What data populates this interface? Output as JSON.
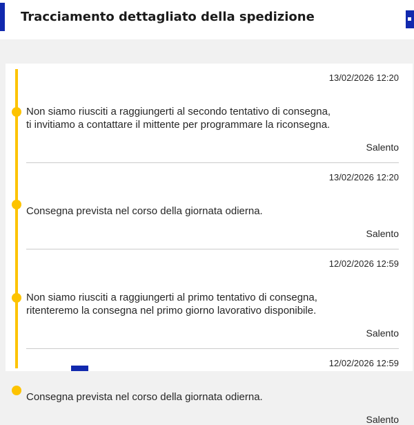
{
  "header": {
    "title": "Tracciamento dettagliato della spedizione"
  },
  "timeline": {
    "events": [
      {
        "datetime": "13/02/2026 12:20",
        "message": "Non siamo riusciti a raggiungerti al secondo tentativo di consegna,\nti invitiamo a contattare il mittente per programmare la riconsegna.",
        "location": "Salento"
      },
      {
        "datetime": "13/02/2026 12:20",
        "message": "Consegna prevista nel corso della giornata odierna.",
        "location": "Salento"
      },
      {
        "datetime": "12/02/2026 12:59",
        "message": "Non siamo riusciti a raggiungerti al primo tentativo di consegna,\nritenteremo la consegna nel primo giorno lavorativo disponibile.",
        "location": "Salento"
      },
      {
        "datetime": "12/02/2026 12:59",
        "message": "Consegna prevista nel corso della giornata odierna.",
        "location": "Salento"
      }
    ]
  },
  "colors": {
    "brand_blue": "#1129ae",
    "timeline_yellow": "#fdc300",
    "text_dark": "#262626",
    "divider_gray": "#cbcbcb",
    "page_background": "#f1f1f1"
  }
}
